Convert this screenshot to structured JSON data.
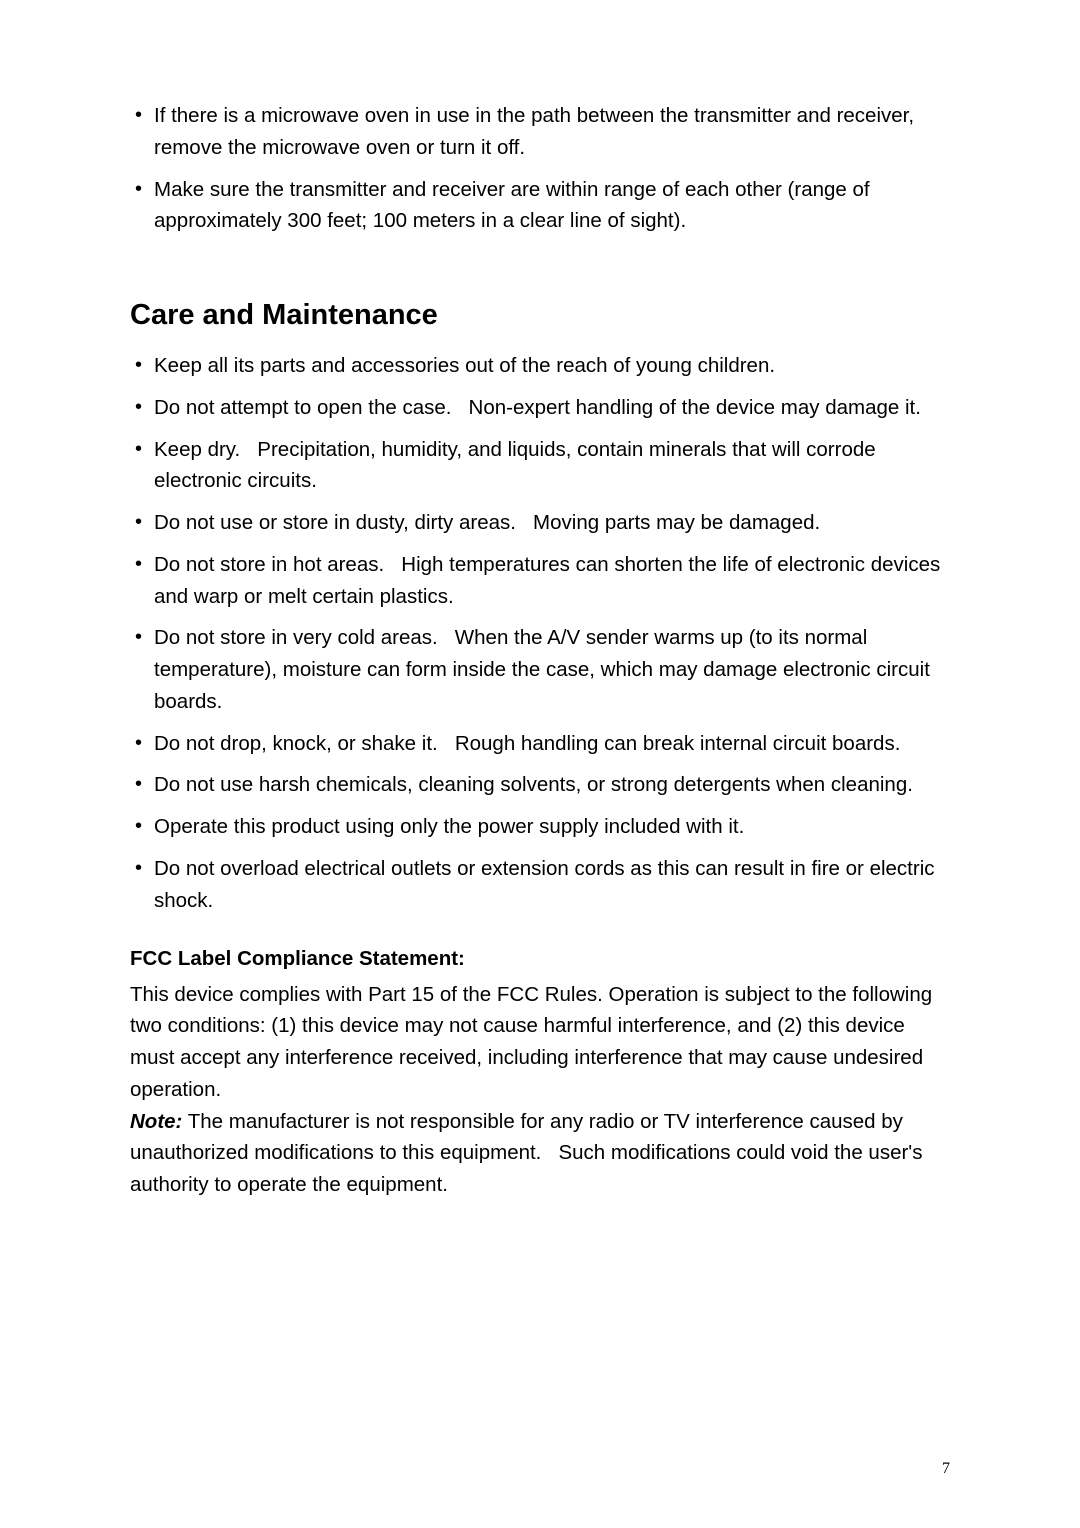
{
  "topList": [
    "If there is a microwave oven in use in the path between the transmitter and receiver, remove the microwave oven or turn it off.",
    "Make sure the transmitter and receiver are within range of each other (range of approximately 300 feet; 100 meters in a clear line of sight)."
  ],
  "heading": "Care and Maintenance",
  "careList": [
    "Keep all its parts and accessories out of the reach of young children.",
    "Do not attempt to open the case.   Non-expert handling of the device may damage it.",
    "Keep dry.   Precipitation, humidity, and liquids, contain minerals that will corrode electronic circuits.",
    "Do not use or store in dusty, dirty areas.   Moving parts may be damaged.",
    "Do not store in hot areas.   High temperatures can shorten the life of electronic devices and warp or melt certain plastics.",
    "Do not store in very cold areas.   When the A/V sender warms up (to its normal temperature), moisture can form inside the case, which may damage electronic circuit boards.",
    "Do not drop, knock, or shake it.   Rough handling can break internal circuit boards.",
    "Do not use harsh chemicals, cleaning solvents, or strong detergents when cleaning.",
    "Operate this product using only the power supply included with it.",
    "Do not overload electrical outlets or extension cords as this can result in fire or electric shock."
  ],
  "fcc": {
    "heading": "FCC Label Compliance Statement:",
    "body": "This device complies with Part 15 of the FCC Rules. Operation is subject to the following two conditions: (1) this device may not cause harmful interference, and (2) this device must accept any interference received, including interference that may cause undesired operation.",
    "noteLabel": "Note:",
    "noteBody": " The manufacturer is not responsible for any radio or TV interference caused by unauthorized modifications to this equipment.   Such modifications could void the user's authority to operate the equipment."
  },
  "pageNumber": "7"
}
